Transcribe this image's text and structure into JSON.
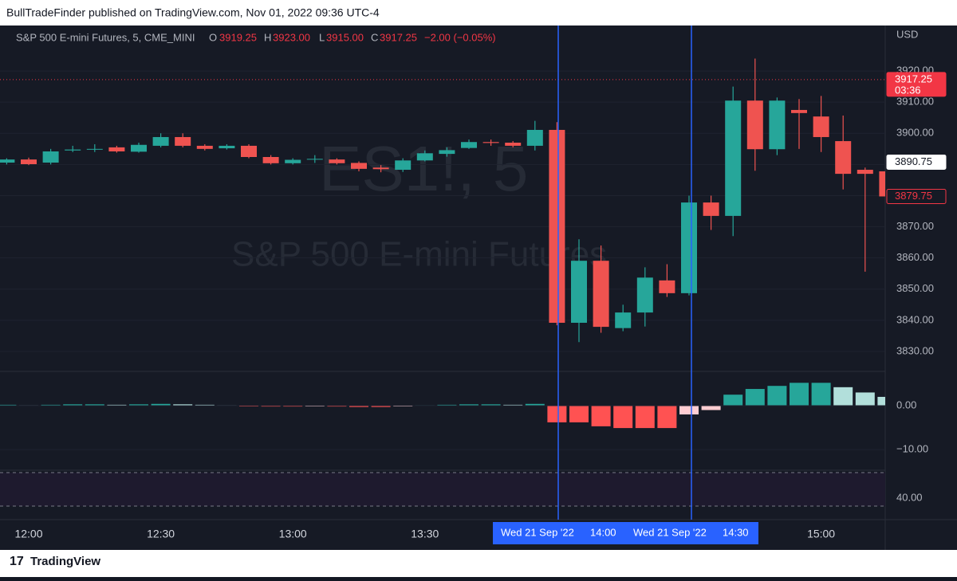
{
  "page": {
    "publisher": "BullTradeFinder published on TradingView.com, Nov 01, 2022 09:36 UTC-4",
    "brand": "TradingView"
  },
  "header": {
    "symbol": "S&P 500 E-mini Futures, 5, CME_MINI",
    "o_label": "O",
    "o": "3919.25",
    "h_label": "H",
    "h": "3923.00",
    "l_label": "L",
    "l": "3915.00",
    "c_label": "C",
    "c": "3917.25",
    "change": "−2.00 (−0.05%)"
  },
  "watermark": {
    "ticker": "ES1!, 5",
    "name": "S&P 500 E-mini Futures"
  },
  "crosshair": {
    "label_1": "Wed 21 Sep '22",
    "time_1": "14:00",
    "label_2": "Wed 21 Sep '22",
    "time_2": "14:30"
  },
  "chart_data": {
    "type": "candlestick",
    "currency": "USD",
    "categories": [
      null,
      "12:00",
      null,
      null,
      null,
      null,
      null,
      "12:30",
      null,
      null,
      null,
      null,
      null,
      "13:00",
      null,
      null,
      null,
      null,
      null,
      "13:30",
      null,
      null,
      null,
      null,
      null,
      null,
      null,
      null,
      null,
      null,
      null,
      null,
      null,
      null,
      null,
      null,
      null,
      "15:00",
      null,
      null,
      null
    ],
    "open": [
      3890.6,
      3891.6,
      3890.6,
      3894.5,
      3894.8,
      3895.5,
      3894.1,
      3896,
      3898.8,
      3896,
      3895.2,
      3896,
      3892.4,
      3890.4,
      3891.6,
      3891.6,
      3890.5,
      3889,
      3888.3,
      3891.3,
      3893.4,
      3895.3,
      3897.2,
      3897,
      3896,
      3901.1,
      3839.2,
      3859.1,
      3837.5,
      3842.5,
      3852.8,
      3848.7,
      3877.8,
      3873.5,
      3910.5,
      3894.9,
      3907.5,
      3905.4,
      3897.5,
      3888.3,
      3887.8
    ],
    "high": [
      3892,
      3892.2,
      3895,
      3896,
      3896.5,
      3896,
      3897,
      3900,
      3900,
      3896.5,
      3896.5,
      3896.5,
      3893,
      3892,
      3893,
      3892,
      3891,
      3889.8,
      3892,
      3894.5,
      3895.5,
      3898,
      3898,
      3897.5,
      3904,
      3903.6,
      3866,
      3864,
      3845,
      3857,
      3858,
      3880,
      3880,
      3915,
      3924,
      3911.5,
      3911,
      3912,
      3905.7,
      3889,
      3889
    ],
    "low": [
      3890,
      3889.8,
      3890,
      3894,
      3894,
      3893.8,
      3893.8,
      3895.5,
      3895.5,
      3894.5,
      3894.8,
      3892,
      3890,
      3890,
      3890.5,
      3890,
      3887.8,
      3887.5,
      3887.6,
      3891,
      3892.5,
      3895,
      3896,
      3895.5,
      3894.5,
      3838.4,
      3833,
      3836,
      3836.5,
      3838,
      3847.5,
      3848,
      3869,
      3867,
      3888,
      3893,
      3895,
      3894,
      3882,
      3855.6,
      3878
    ],
    "close": [
      3891.6,
      3890.1,
      3894.2,
      3894.8,
      3895,
      3894.2,
      3896.3,
      3898.8,
      3896,
      3895,
      3896,
      3892.4,
      3890.4,
      3891.5,
      3891.8,
      3890.4,
      3888.6,
      3888.5,
      3891.3,
      3893.6,
      3894.6,
      3897.2,
      3896.9,
      3896,
      3901.1,
      3839.2,
      3859.1,
      3837.9,
      3842.5,
      3853.7,
      3848.7,
      3877.8,
      3873.5,
      3910.5,
      3894.9,
      3910.5,
      3906.5,
      3898.8,
      3887,
      3887,
      3879.75
    ],
    "up_color": "#26a69a",
    "down_color": "#ef5350",
    "ylim": [
      3823.6,
      3934.6
    ],
    "yticks": [
      {
        "value": 3830,
        "label": "3830.00"
      },
      {
        "value": 3840,
        "label": "3840.00"
      },
      {
        "value": 3850,
        "label": "3850.00"
      },
      {
        "value": 3860,
        "label": "3860.00"
      },
      {
        "value": 3870,
        "label": "3870.00"
      },
      {
        "value": 3880,
        "label": "3880.00"
      },
      {
        "value": 3890,
        "label": "3890.00"
      },
      {
        "value": 3900,
        "label": "3900.00"
      },
      {
        "value": 3910,
        "label": "3910.00"
      },
      {
        "value": 3920,
        "label": "3920.00"
      }
    ],
    "price_tags": [
      {
        "value": 3917.25,
        "label": "3917.25",
        "sub": "03:36",
        "color": "#f23645"
      },
      {
        "value": 3890.75,
        "label": "3890.75",
        "color": "#ffffff"
      },
      {
        "value": 3879.75,
        "label": "3879.75",
        "color": "#f23645"
      }
    ],
    "macd_histogram": {
      "values": [
        0.2,
        0.1,
        0.2,
        0.3,
        0.3,
        0.2,
        0.3,
        0.4,
        0.3,
        0.2,
        0.1,
        -0.1,
        -0.2,
        -0.2,
        -0.1,
        -0.2,
        -0.3,
        -0.3,
        -0.1,
        0.1,
        0.2,
        0.3,
        0.3,
        0.2,
        0.4,
        -3.8,
        -3.8,
        -4.7,
        -5.1,
        -5.1,
        -5.1,
        -2,
        -1,
        2.5,
        3.8,
        4.5,
        5.2,
        5.2,
        4.2,
        3,
        2
      ],
      "ylim": [
        -14.7,
        7.8
      ],
      "yticks": [
        {
          "value": 0,
          "label": "0.00"
        },
        {
          "value": -10,
          "label": "−10.00"
        }
      ],
      "colors": {
        "up_rising": "#26a69a",
        "up_falling": "#b2dfdb",
        "down_falling": "#ff5252",
        "down_rising": "#ffcdd2"
      }
    },
    "rsi_label": "40.00"
  }
}
